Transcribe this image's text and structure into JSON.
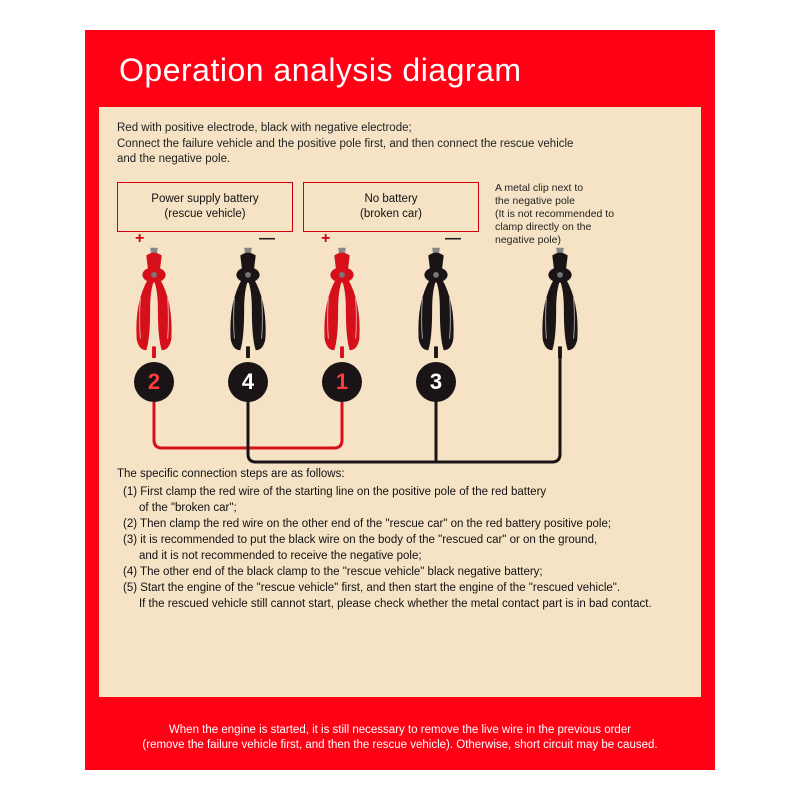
{
  "colors": {
    "card_bg": "#ff0014",
    "panel_bg": "#f6e3c6",
    "box_border": "#d00010",
    "text": "#111111",
    "badge_bg": "#1a1416",
    "badge_red_text": "#ff3b3b",
    "clip_red": "#d5101a",
    "clip_black": "#1b1416",
    "clip_highlight": "#ffffff",
    "wire_red": "#d5101a",
    "wire_black": "#1b1416",
    "wire_width": 3
  },
  "title": "Operation analysis diagram",
  "intro": {
    "l1": "Red with positive electrode, black with negative electrode;",
    "l2": "Connect the failure vehicle and the positive pole first, and then connect the rescue vehicle",
    "l3": "and the negative pole."
  },
  "box1": {
    "l1": "Power supply battery",
    "l2": "(rescue vehicle)"
  },
  "box2": {
    "l1": "No battery",
    "l2": "(broken car)"
  },
  "side_note": {
    "l1": "A metal clip next to",
    "l2": "the negative pole",
    "l3": "(It is not recommended to",
    "l4": "clamp directly on the",
    "l5": "negative pole)"
  },
  "terminals": {
    "plus": "+",
    "minus": "—"
  },
  "badges": {
    "a": "2",
    "b": "4",
    "c": "1",
    "d": "3"
  },
  "clips": [
    {
      "color": "red",
      "pos": "clip-1"
    },
    {
      "color": "black",
      "pos": "clip-2"
    },
    {
      "color": "red",
      "pos": "clip-3"
    },
    {
      "color": "black",
      "pos": "clip-4"
    },
    {
      "color": "black",
      "pos": "clip-5"
    }
  ],
  "steps": {
    "hd": "The specific connection steps are as follows:",
    "s1a": "(1) First clamp the red wire of the starting line on the positive pole of the red battery",
    "s1b": "     of the \"broken car\";",
    "s2": "(2) Then clamp the red wire on the other end of the \"rescue car\" on the red battery positive pole;",
    "s3a": "(3) it is recommended to put the black wire on the body of the \"rescued car\" or on the ground,",
    "s3b": "     and it is not recommended to receive the negative pole;",
    "s4": "(4) The other end of the black clamp to the \"rescue vehicle\" black negative battery;",
    "s5a": "(5) Start the engine of the \"rescue vehicle\" first, and then start the engine of the \"rescued vehicle\".",
    "s5b": "     If the rescued vehicle still cannot start, please check whether the metal contact part is in bad contact."
  },
  "footer": {
    "l1": "When the engine is started, it is still necessary to remove the live wire in the previous order",
    "l2": "(remove the failure vehicle first, and then the rescue vehicle). Otherwise, short circuit may be caused."
  }
}
